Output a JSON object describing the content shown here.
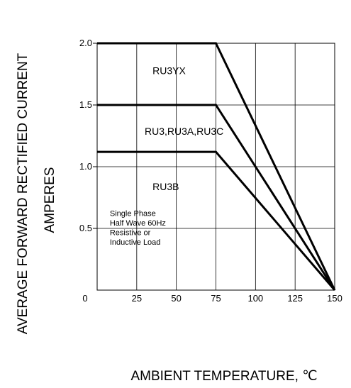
{
  "chart_data": {
    "type": "line",
    "xlabel": "AMBIENT TEMPERATURE, ℃",
    "ylabel_line1": "AVERAGE FORWARD RECTIFIED CURRENT",
    "ylabel_line2": "AMPERES",
    "xlim": [
      0,
      150
    ],
    "ylim": [
      0,
      2.0
    ],
    "xticks": [
      0,
      25,
      50,
      75,
      100,
      125,
      150
    ],
    "xtick_labels": [
      "0",
      "25",
      "50",
      "75",
      "100",
      "125",
      "150"
    ],
    "yticks": [
      0.5,
      1.0,
      1.5,
      2.0
    ],
    "ytick_labels": [
      "0.5",
      "1.0",
      "1.5",
      "2.0"
    ],
    "grid": true,
    "series": [
      {
        "name": "RU3YX",
        "x": [
          0,
          75,
          150
        ],
        "y": [
          2.0,
          2.0,
          0
        ]
      },
      {
        "name": "RU3,RU3A,RU3C",
        "x": [
          0,
          75,
          150
        ],
        "y": [
          1.5,
          1.5,
          0
        ]
      },
      {
        "name": "RU3B",
        "x": [
          0,
          75,
          150
        ],
        "y": [
          1.12,
          1.12,
          0
        ]
      }
    ],
    "series_label_positions": [
      {
        "x": 35,
        "y": 1.75
      },
      {
        "x": 30,
        "y": 1.26
      },
      {
        "x": 35,
        "y": 0.81
      }
    ],
    "annotation": [
      "Single Phase",
      "Half Wave 60Hz",
      "Resistive or",
      "Inductive Load"
    ],
    "annotation_position": {
      "x": 8,
      "y": 0.6
    }
  }
}
